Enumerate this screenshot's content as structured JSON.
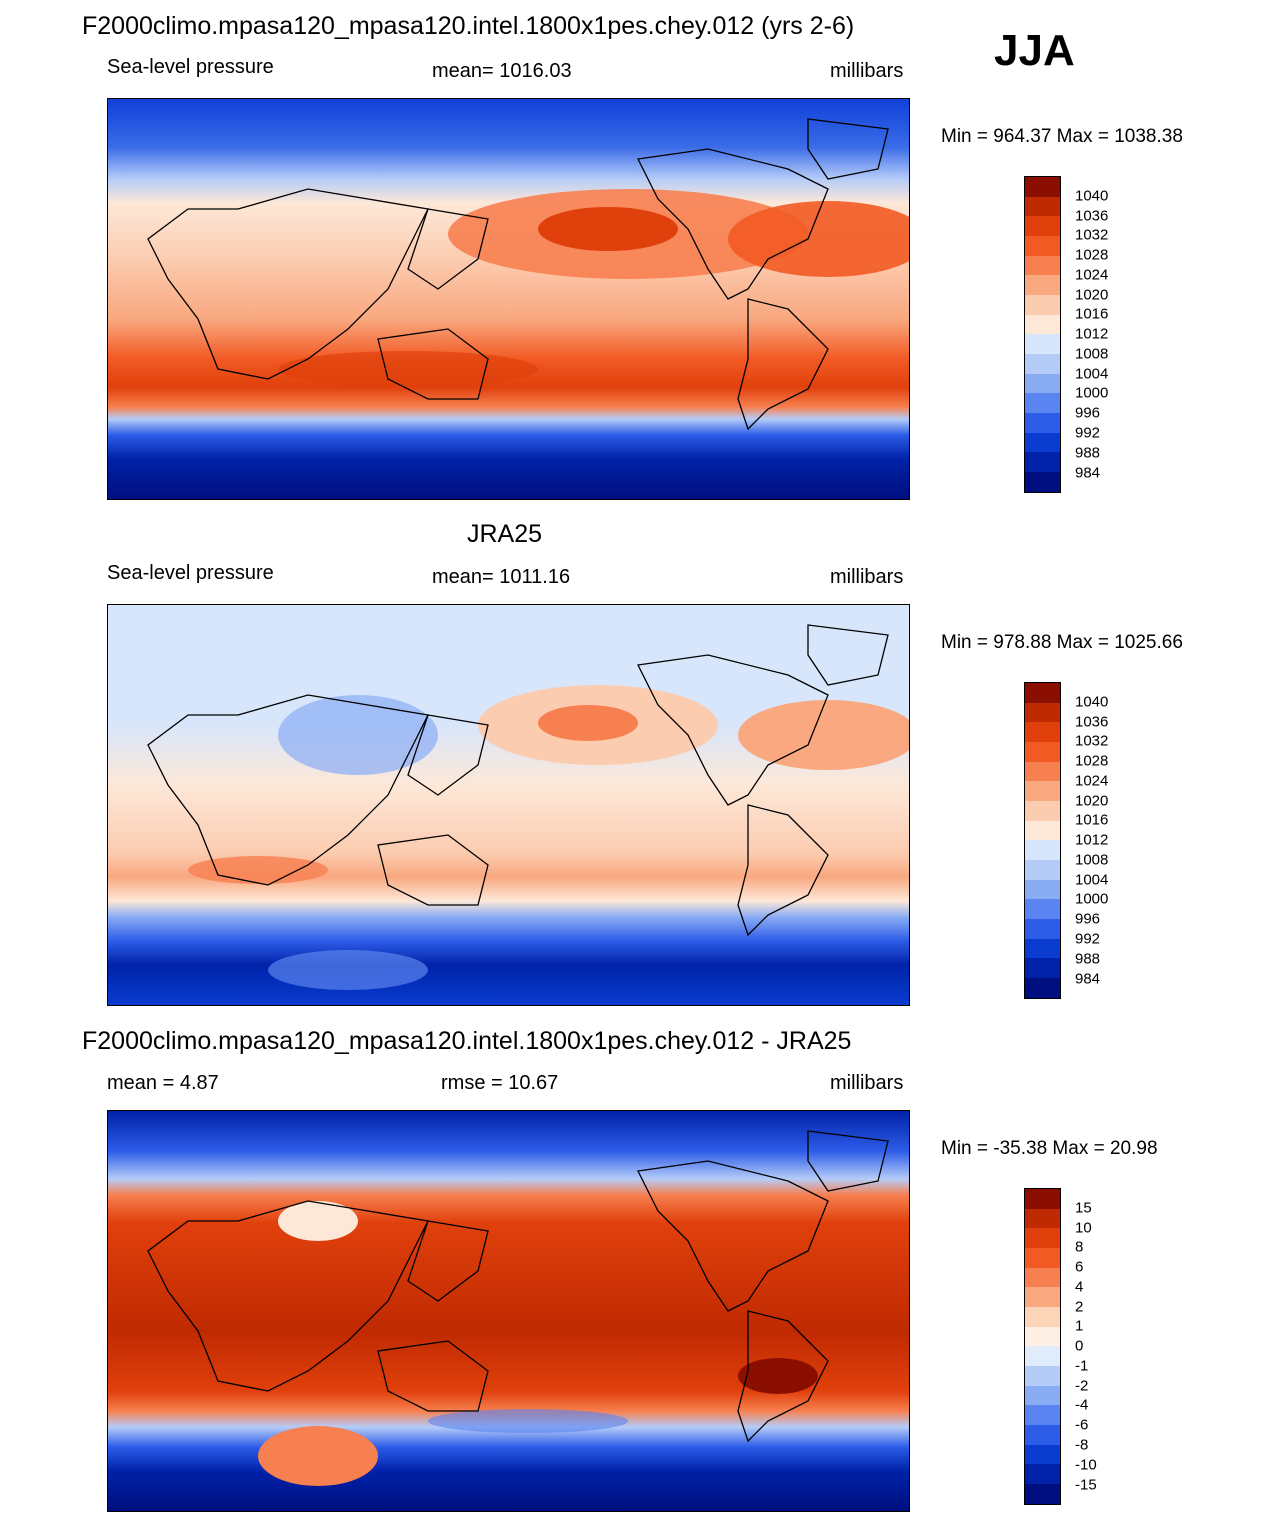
{
  "season": "JJA",
  "colors": {
    "abs": [
      "#000f7f",
      "#0022a8",
      "#0a3cd0",
      "#2d5ce8",
      "#5a84f0",
      "#8aacf5",
      "#b5ccf8",
      "#d8e6fb",
      "#fde8d8",
      "#fcccb0",
      "#f9a880",
      "#f78050",
      "#f25a24",
      "#e0400c",
      "#c02a02",
      "#8a0f00"
    ],
    "diff": [
      "#000f7f",
      "#0022a8",
      "#0a3cd0",
      "#2d5ce8",
      "#5a84f0",
      "#8aacf5",
      "#b5ccf8",
      "#e0ecfb",
      "#fdefe3",
      "#fcd4b8",
      "#f9a880",
      "#f78050",
      "#f25a24",
      "#e0400c",
      "#c02a02",
      "#8a0f00"
    ]
  },
  "panels": [
    {
      "title": "F2000climo.mpasa120_mpasa120.intel.1800x1pes.chey.012 (yrs 2-6)",
      "left_label": "Sea-level pressure",
      "center_label": "mean= 1016.03",
      "units": "millibars",
      "minmax": "Min = 964.37 Max = 1038.38",
      "levels": [
        "1040",
        "1036",
        "1032",
        "1028",
        "1024",
        "1020",
        "1016",
        "1012",
        "1008",
        "1004",
        "1000",
        "996",
        "992",
        "988",
        "984"
      ]
    },
    {
      "title": "JRA25",
      "left_label": "Sea-level pressure",
      "center_label": "mean= 1011.16",
      "units": "millibars",
      "minmax": "Min = 978.88 Max = 1025.66",
      "levels": [
        "1040",
        "1036",
        "1032",
        "1028",
        "1024",
        "1020",
        "1016",
        "1012",
        "1008",
        "1004",
        "1000",
        "996",
        "992",
        "988",
        "984"
      ]
    },
    {
      "title": "F2000climo.mpasa120_mpasa120.intel.1800x1pes.chey.012 - JRA25",
      "left_label": "mean =   4.87",
      "center_label": "rmse =  10.67",
      "units": "millibars",
      "minmax": "Min = -35.38 Max =  20.98",
      "levels": [
        "15",
        "10",
        "8",
        "6",
        "4",
        "2",
        "1",
        "0",
        "-1",
        "-2",
        "-4",
        "-6",
        "-8",
        "-10",
        "-15"
      ]
    }
  ]
}
